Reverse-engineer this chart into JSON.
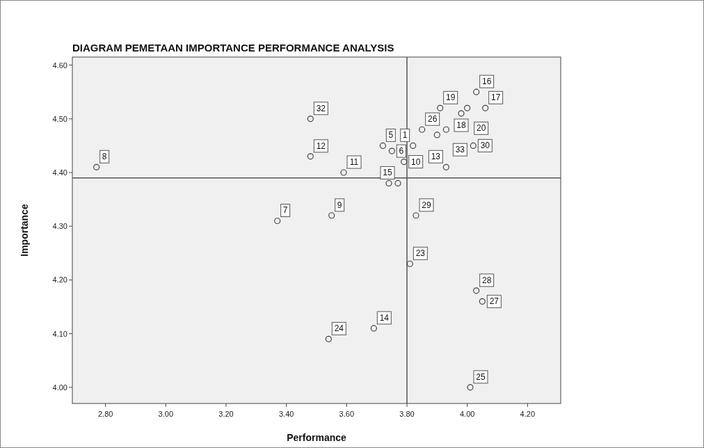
{
  "chart_data": {
    "type": "scatter",
    "title": "DIAGRAM PEMETAAN IMPORTANCE PERFORMANCE ANALYSIS",
    "xlabel": "Performance",
    "ylabel": "Importance",
    "x": [
      2.77,
      3.37,
      3.48,
      3.48,
      4.03,
      3.91,
      4.0,
      4.06,
      3.98,
      3.85,
      3.93,
      3.9,
      3.82,
      4.02,
      3.72,
      3.75,
      3.79,
      3.59,
      3.93,
      3.74,
      3.77,
      3.83,
      3.55,
      3.81,
      4.03,
      4.05,
      3.69,
      3.54,
      4.01
    ],
    "series": [
      {
        "color": "#444444",
        "values": [
          4.41,
          4.31,
          4.5,
          4.43,
          4.55,
          4.52,
          4.52,
          4.52,
          4.51,
          4.48,
          4.48,
          4.47,
          4.45,
          4.45,
          4.45,
          4.44,
          4.42,
          4.4,
          4.41,
          4.38,
          4.38,
          4.32,
          4.32,
          4.23,
          4.18,
          4.16,
          4.11,
          4.09,
          4.0
        ]
      }
    ],
    "marker": "circle",
    "grid": false,
    "xlim": [
      2.69,
      4.31
    ],
    "ylim": [
      3.97,
      4.615
    ],
    "xticks": [
      {
        "value": 2.8,
        "label": "2.80"
      },
      {
        "value": 3.0,
        "label": "3.00"
      },
      {
        "value": 3.2,
        "label": "3.20"
      },
      {
        "value": 3.4,
        "label": "3.40"
      },
      {
        "value": 3.6,
        "label": "3.60"
      },
      {
        "value": 3.8,
        "label": "3.80"
      },
      {
        "value": 4.0,
        "label": "4.00"
      },
      {
        "value": 4.2,
        "label": "4.20"
      }
    ],
    "yticks": [
      {
        "value": 4.0,
        "label": "4.00"
      },
      {
        "value": 4.1,
        "label": "4.10"
      },
      {
        "value": 4.2,
        "label": "4.20"
      },
      {
        "value": 4.3,
        "label": "4.30"
      },
      {
        "value": 4.4,
        "label": "4.40"
      },
      {
        "value": 4.5,
        "label": "4.50"
      },
      {
        "value": 4.6,
        "label": "4.60"
      }
    ],
    "ref_lines": [
      {
        "axis": "x",
        "value": 3.8,
        "color": "#555555"
      },
      {
        "axis": "y",
        "value": 4.39,
        "color": "#555555"
      }
    ],
    "annotations": [
      {
        "text": "8",
        "x": 2.77,
        "y": 4.41
      },
      {
        "text": "7",
        "x": 3.37,
        "y": 4.31
      },
      {
        "text": "32",
        "x": 3.48,
        "y": 4.5
      },
      {
        "text": "12",
        "x": 3.48,
        "y": 4.43
      },
      {
        "text": "16",
        "x": 4.03,
        "y": 4.55
      },
      {
        "text": "19",
        "x": 3.91,
        "y": 4.52
      },
      {
        "text": "20",
        "x": 4.0,
        "y": 4.52
      },
      {
        "text": "17",
        "x": 4.06,
        "y": 4.52
      },
      {
        "text": "18",
        "x": 3.98,
        "y": 4.51
      },
      {
        "text": "26",
        "x": 3.85,
        "y": 4.48
      },
      {
        "text": "33",
        "x": 3.93,
        "y": 4.48
      },
      {
        "text": "1",
        "x": 3.82,
        "y": 4.45
      },
      {
        "text": "30",
        "x": 4.02,
        "y": 4.45
      },
      {
        "text": "5",
        "x": 3.72,
        "y": 4.45
      },
      {
        "text": "6",
        "x": 3.75,
        "y": 4.44
      },
      {
        "text": "10",
        "x": 3.79,
        "y": 4.42
      },
      {
        "text": "11",
        "x": 3.59,
        "y": 4.4
      },
      {
        "text": "13",
        "x": 3.93,
        "y": 4.41
      },
      {
        "text": "15",
        "x": 3.77,
        "y": 4.38
      },
      {
        "text": "29",
        "x": 3.83,
        "y": 4.32
      },
      {
        "text": "9",
        "x": 3.55,
        "y": 4.32
      },
      {
        "text": "23",
        "x": 3.81,
        "y": 4.23
      },
      {
        "text": "28",
        "x": 4.03,
        "y": 4.18
      },
      {
        "text": "27",
        "x": 4.05,
        "y": 4.16
      },
      {
        "text": "14",
        "x": 3.69,
        "y": 4.11
      },
      {
        "text": "24",
        "x": 3.54,
        "y": 4.09
      },
      {
        "text": "25",
        "x": 4.01,
        "y": 4.0
      }
    ]
  }
}
